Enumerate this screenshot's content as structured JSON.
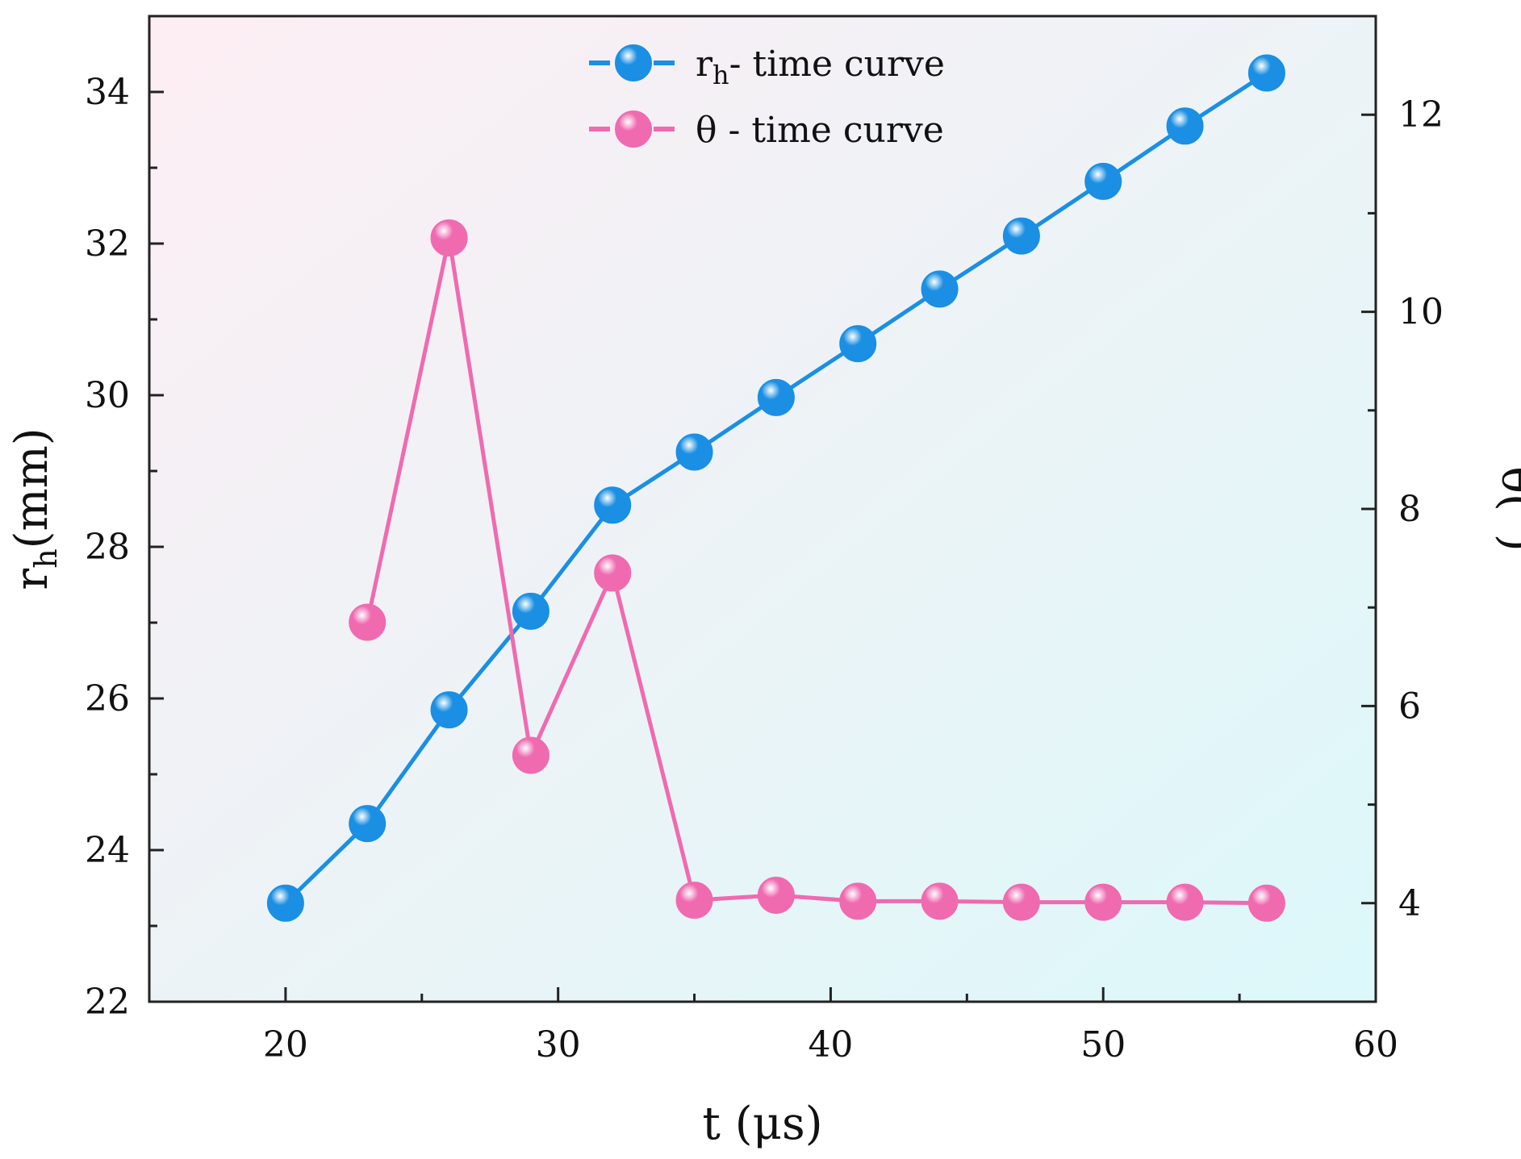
{
  "chart_data": {
    "type": "line",
    "x": [
      20,
      23,
      26,
      29,
      32,
      35,
      38,
      41,
      44,
      47,
      50,
      53,
      56
    ],
    "xlabel": "t (μs)",
    "xlim": [
      15,
      60
    ],
    "xticks": [
      20,
      30,
      40,
      50,
      60
    ],
    "ylabel_left": {
      "main": "r",
      "sub": "h",
      "suffix": "(mm)"
    },
    "ylim_left": [
      22,
      35
    ],
    "yticks_left": [
      22,
      24,
      26,
      28,
      30,
      32,
      34
    ],
    "ylabel_right": "θ(°)",
    "ylim_right": [
      3,
      13
    ],
    "yticks_right": [
      4,
      6,
      8,
      10,
      12
    ],
    "series": [
      {
        "name": "rh- time curve",
        "legend": {
          "main": "r",
          "sub": "h",
          "suffix": "- time curve"
        },
        "axis": "left",
        "color": "#1a8fe3",
        "x": [
          20,
          23,
          26,
          29,
          32,
          35,
          38,
          41,
          44,
          47,
          50,
          53,
          56
        ],
        "values": [
          23.3,
          24.35,
          25.85,
          27.15,
          28.55,
          29.25,
          29.97,
          30.68,
          31.4,
          32.1,
          32.82,
          33.55,
          34.25
        ]
      },
      {
        "name": "θ - time curve",
        "legend": {
          "main": "θ - time curve",
          "sub": "",
          "suffix": ""
        },
        "axis": "right",
        "color": "#f06ab0",
        "x": [
          23,
          26,
          29,
          32,
          35,
          38,
          41,
          44,
          47,
          50,
          53,
          56
        ],
        "values": [
          6.85,
          10.75,
          5.5,
          7.35,
          4.03,
          4.08,
          4.02,
          4.02,
          4.01,
          4.01,
          4.01,
          4.0
        ]
      }
    ],
    "legend_position": "top-center",
    "grid": false,
    "background": [
      "#fdeef3",
      "#dcf8fa"
    ]
  }
}
